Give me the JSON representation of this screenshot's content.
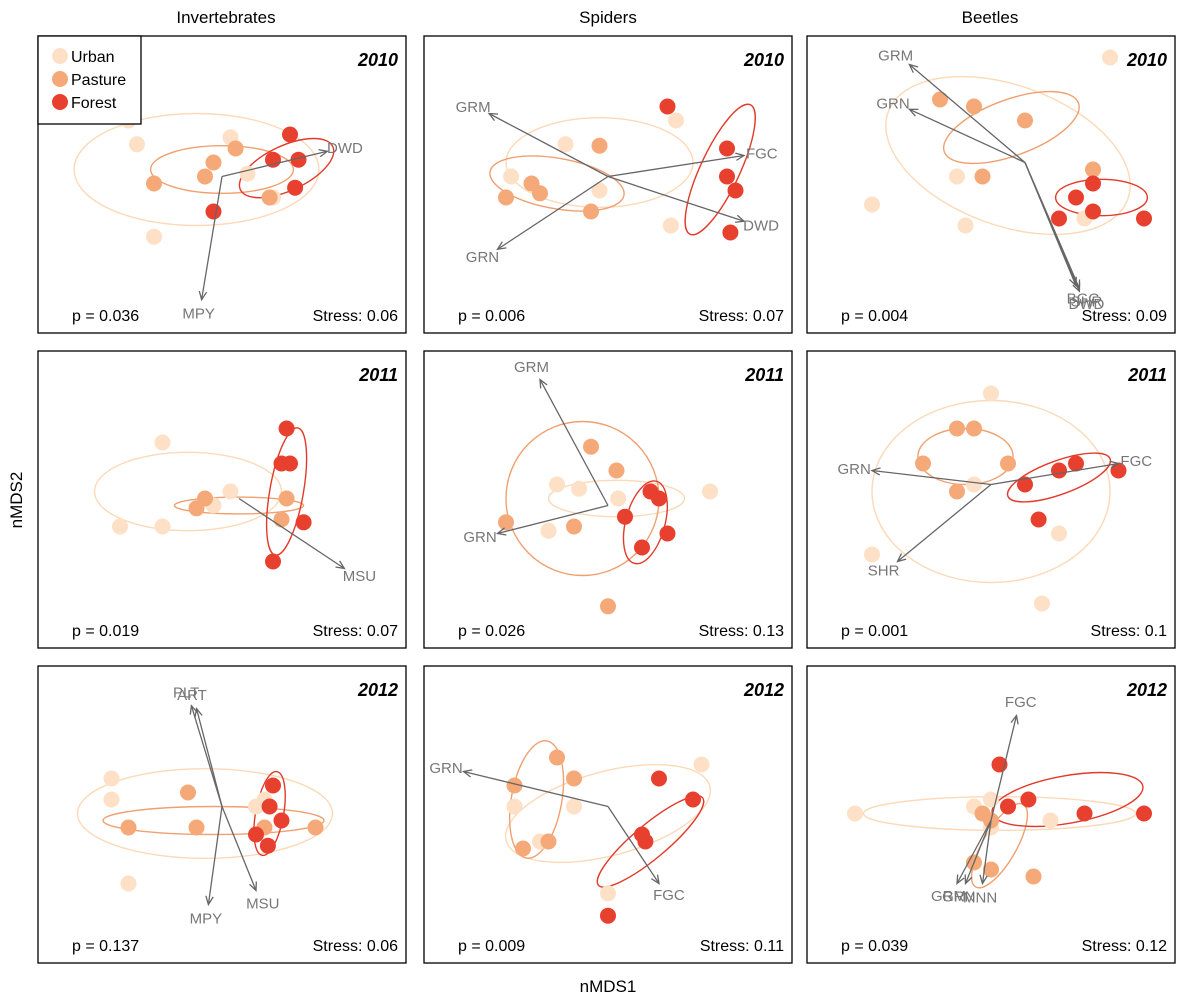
{
  "figure": {
    "xlabel": "nMDS1",
    "ylabel": "nMDS2",
    "columns": [
      "Invertebrates",
      "Spiders",
      "Beetles"
    ],
    "legend": {
      "entries": [
        {
          "label": "Urban",
          "color": "#FDE0C5"
        },
        {
          "label": "Pasture",
          "color": "#F5A978"
        },
        {
          "label": "Forest",
          "color": "#E8402F"
        }
      ],
      "position": "top-left of first panel"
    }
  },
  "colors": {
    "Urban": "#FDE0C5",
    "Pasture": "#F5A978",
    "Forest": "#E8402F",
    "arrow": "#666666",
    "arrow_label": "#777777"
  },
  "chart_data": [
    {
      "type": "scatter",
      "group": "Invertebrates",
      "year": "2010",
      "p": "p = 0.036",
      "stress": "Stress: 0.06",
      "points": {
        "Urban": [
          [
            -0.55,
            0.4
          ],
          [
            -0.5,
            0.23
          ],
          [
            0.05,
            0.28
          ],
          [
            -0.4,
            -0.43
          ],
          [
            0.15,
            0.02
          ],
          [
            0.3,
            -0.15
          ]
        ],
        "Pasture": [
          [
            -0.4,
            -0.05
          ],
          [
            -0.05,
            0.1
          ],
          [
            0.08,
            0.2
          ],
          [
            -0.1,
            0.0
          ],
          [
            0.28,
            -0.15
          ]
        ],
        "Forest": [
          [
            -0.05,
            -0.25
          ],
          [
            0.3,
            0.12
          ],
          [
            0.45,
            0.12
          ],
          [
            0.4,
            0.3
          ],
          [
            0.43,
            -0.08
          ]
        ]
      },
      "ellipses": {
        "Urban": {
          "cx": -0.15,
          "cy": 0.05,
          "rx": 0.72,
          "ry": 0.4,
          "angle": 0
        },
        "Pasture": {
          "cx": 0.0,
          "cy": 0.05,
          "rx": 0.42,
          "ry": 0.17,
          "angle": 0
        },
        "Forest": {
          "cx": 0.38,
          "cy": 0.06,
          "rx": 0.3,
          "ry": 0.16,
          "angle": -25
        }
      },
      "vectors": [
        {
          "label": "DWD",
          "x": 0.62,
          "y": 0.18
        },
        {
          "label": "MPY",
          "x": -0.12,
          "y": -0.88
        }
      ],
      "vector_origin": [
        0.0,
        0.0
      ]
    },
    {
      "type": "scatter",
      "group": "Spiders",
      "year": "2010",
      "p": "p = 0.006",
      "stress": "Stress: 0.07",
      "points": {
        "Urban": [
          [
            -0.57,
            0.0
          ],
          [
            -0.25,
            0.23
          ],
          [
            0.4,
            0.4
          ],
          [
            -0.05,
            -0.1
          ],
          [
            0.37,
            -0.35
          ]
        ],
        "Pasture": [
          [
            -0.6,
            -0.15
          ],
          [
            -0.45,
            -0.05
          ],
          [
            -0.4,
            -0.12
          ],
          [
            -0.1,
            -0.25
          ],
          [
            -0.05,
            0.22
          ]
        ],
        "Forest": [
          [
            0.35,
            0.5
          ],
          [
            0.7,
            0.2
          ],
          [
            0.7,
            0.0
          ],
          [
            0.75,
            -0.1
          ],
          [
            0.72,
            -0.4
          ]
        ]
      },
      "ellipses": {
        "Urban": {
          "cx": -0.05,
          "cy": 0.1,
          "rx": 0.55,
          "ry": 0.32,
          "angle": 0
        },
        "Pasture": {
          "cx": -0.3,
          "cy": -0.05,
          "rx": 0.4,
          "ry": 0.18,
          "angle": 10
        },
        "Forest": {
          "cx": 0.66,
          "cy": 0.05,
          "rx": 0.42,
          "ry": 0.14,
          "angle": -65
        }
      },
      "vectors": [
        {
          "label": "GRM",
          "x": -0.7,
          "y": 0.45
        },
        {
          "label": "FGC",
          "x": 0.8,
          "y": 0.15
        },
        {
          "label": "GRN",
          "x": -0.65,
          "y": -0.52
        },
        {
          "label": "DWD",
          "x": 0.8,
          "y": -0.32
        }
      ],
      "vector_origin": [
        0.0,
        0.0
      ]
    },
    {
      "type": "scatter",
      "group": "Beetles",
      "year": "2010",
      "p": "p = 0.004",
      "stress": "Stress: 0.09",
      "points": {
        "Urban": [
          [
            -0.7,
            -0.2
          ],
          [
            -0.2,
            0.0
          ],
          [
            -0.15,
            -0.35
          ],
          [
            0.55,
            -0.3
          ],
          [
            0.7,
            0.85
          ]
        ],
        "Pasture": [
          [
            -0.3,
            0.55
          ],
          [
            -0.1,
            0.5
          ],
          [
            -0.05,
            0.0
          ],
          [
            0.2,
            0.4
          ],
          [
            0.6,
            0.05
          ]
        ],
        "Forest": [
          [
            0.6,
            -0.05
          ],
          [
            0.5,
            -0.15
          ],
          [
            0.6,
            -0.25
          ],
          [
            0.4,
            -0.3
          ],
          [
            0.9,
            -0.3
          ]
        ]
      },
      "ellipses": {
        "Urban": {
          "cx": 0.1,
          "cy": 0.15,
          "rx": 0.75,
          "ry": 0.5,
          "angle": 20
        },
        "Pasture": {
          "cx": 0.12,
          "cy": 0.35,
          "rx": 0.42,
          "ry": 0.2,
          "angle": -20
        },
        "Forest": {
          "cx": 0.65,
          "cy": -0.15,
          "rx": 0.27,
          "ry": 0.13,
          "angle": 0
        }
      },
      "vectors": [
        {
          "label": "GRM",
          "x": -0.48,
          "y": 0.8
        },
        {
          "label": "GRN",
          "x": -0.48,
          "y": 0.48
        },
        {
          "label": "BGC",
          "x": 0.5,
          "y": -0.78
        },
        {
          "label": "SHR",
          "x": 0.52,
          "y": -0.8
        },
        {
          "label": "DWD",
          "x": 0.52,
          "y": -0.82
        }
      ],
      "vector_origin": [
        0.2,
        0.1
      ]
    },
    {
      "type": "scatter",
      "group": "Invertebrates",
      "year": "2011",
      "p": "p = 0.019",
      "stress": "Stress: 0.07",
      "points": {
        "Urban": [
          [
            -0.6,
            -0.25
          ],
          [
            -0.35,
            -0.25
          ],
          [
            -0.35,
            0.35
          ],
          [
            -0.05,
            -0.1
          ],
          [
            0.05,
            0.0
          ]
        ],
        "Pasture": [
          [
            -0.1,
            -0.05
          ],
          [
            -0.15,
            -0.12
          ],
          [
            0.38,
            -0.05
          ],
          [
            0.35,
            -0.2
          ]
        ],
        "Forest": [
          [
            0.38,
            0.45
          ],
          [
            0.35,
            0.2
          ],
          [
            0.4,
            0.2
          ],
          [
            0.48,
            -0.22
          ],
          [
            0.3,
            -0.5
          ]
        ]
      },
      "ellipses": {
        "Urban": {
          "cx": -0.2,
          "cy": 0.0,
          "rx": 0.55,
          "ry": 0.28,
          "angle": 0
        },
        "Pasture": {
          "cx": 0.1,
          "cy": -0.1,
          "rx": 0.38,
          "ry": 0.06,
          "angle": 0
        },
        "Forest": {
          "cx": 0.38,
          "cy": 0.0,
          "rx": 0.38,
          "ry": 0.12,
          "angle": -80
        }
      },
      "vectors": [
        {
          "label": "MSU",
          "x": 0.72,
          "y": -0.55
        }
      ],
      "vector_origin": [
        0.1,
        -0.05
      ]
    },
    {
      "type": "scatter",
      "group": "Spiders",
      "year": "2011",
      "p": "p = 0.026",
      "stress": "Stress: 0.13",
      "points": {
        "Urban": [
          [
            -0.3,
            0.05
          ],
          [
            -0.35,
            -0.28
          ],
          [
            0.06,
            -0.05
          ],
          [
            0.6,
            0.0
          ],
          [
            -0.17,
            0.02
          ]
        ],
        "Pasture": [
          [
            -0.6,
            -0.22
          ],
          [
            -0.1,
            0.32
          ],
          [
            -0.2,
            -0.25
          ],
          [
            0.05,
            0.15
          ],
          [
            0.0,
            -0.82
          ]
        ],
        "Forest": [
          [
            0.1,
            -0.18
          ],
          [
            0.3,
            -0.05
          ],
          [
            0.2,
            -0.4
          ],
          [
            0.35,
            -0.3
          ],
          [
            0.25,
            0.0
          ]
        ]
      },
      "ellipses": {
        "Urban": {
          "cx": 0.05,
          "cy": -0.05,
          "rx": 0.4,
          "ry": 0.13,
          "angle": 0
        },
        "Pasture": {
          "cx": -0.15,
          "cy": -0.05,
          "rx": 0.45,
          "ry": 0.55,
          "angle": 0
        },
        "Forest": {
          "cx": 0.22,
          "cy": -0.22,
          "rx": 0.25,
          "ry": 0.14,
          "angle": -75
        }
      },
      "vectors": [
        {
          "label": "GRM",
          "x": -0.4,
          "y": 0.8
        },
        {
          "label": "GRN",
          "x": -0.65,
          "y": -0.3
        }
      ],
      "vector_origin": [
        0.0,
        -0.1
      ]
    },
    {
      "type": "scatter",
      "group": "Beetles",
      "year": "2011",
      "p": "p = 0.001",
      "stress": "Stress: 0.1",
      "points": {
        "Urban": [
          [
            -0.1,
            0.05
          ],
          [
            0.0,
            0.7
          ],
          [
            0.4,
            -0.3
          ],
          [
            -0.7,
            -0.45
          ],
          [
            0.3,
            -0.8
          ]
        ],
        "Pasture": [
          [
            -0.2,
            0.45
          ],
          [
            -0.1,
            0.45
          ],
          [
            -0.4,
            0.2
          ],
          [
            0.1,
            0.2
          ],
          [
            -0.2,
            0.0
          ]
        ],
        "Forest": [
          [
            0.2,
            0.05
          ],
          [
            0.4,
            0.15
          ],
          [
            0.5,
            0.2
          ],
          [
            0.75,
            0.15
          ],
          [
            0.28,
            -0.2
          ]
        ]
      },
      "ellipses": {
        "Urban": {
          "cx": 0.0,
          "cy": 0.0,
          "rx": 0.7,
          "ry": 0.65,
          "angle": 0
        },
        "Pasture": {
          "cx": -0.15,
          "cy": 0.25,
          "rx": 0.28,
          "ry": 0.2,
          "angle": 0
        },
        "Forest": {
          "cx": 0.4,
          "cy": 0.1,
          "rx": 0.32,
          "ry": 0.12,
          "angle": -20
        }
      },
      "vectors": [
        {
          "label": "GRN",
          "x": -0.7,
          "y": 0.15
        },
        {
          "label": "FGC",
          "x": 0.75,
          "y": 0.2
        },
        {
          "label": "SHR",
          "x": -0.55,
          "y": -0.5
        }
      ],
      "vector_origin": [
        0.0,
        0.05
      ]
    },
    {
      "type": "scatter",
      "group": "Invertebrates",
      "year": "2012",
      "p": "p = 0.137",
      "stress": "Stress: 0.06",
      "points": {
        "Urban": [
          [
            -0.65,
            0.2
          ],
          [
            -0.65,
            0.05
          ],
          [
            -0.55,
            -0.55
          ],
          [
            0.25,
            0.05
          ],
          [
            0.2,
            0.0
          ]
        ],
        "Pasture": [
          [
            -0.55,
            -0.15
          ],
          [
            -0.2,
            0.1
          ],
          [
            -0.15,
            -0.15
          ],
          [
            0.25,
            -0.15
          ],
          [
            0.55,
            -0.15
          ]
        ],
        "Forest": [
          [
            0.3,
            0.15
          ],
          [
            0.28,
            0.0
          ],
          [
            0.35,
            -0.1
          ],
          [
            0.2,
            -0.2
          ],
          [
            0.27,
            -0.28
          ]
        ]
      },
      "ellipses": {
        "Urban": {
          "cx": -0.1,
          "cy": -0.05,
          "rx": 0.75,
          "ry": 0.32,
          "angle": 0
        },
        "Pasture": {
          "cx": -0.05,
          "cy": -0.1,
          "rx": 0.65,
          "ry": 0.1,
          "angle": 0
        },
        "Forest": {
          "cx": 0.28,
          "cy": -0.05,
          "rx": 0.25,
          "ry": 0.1,
          "angle": -80
        }
      },
      "vectors": [
        {
          "label": "PLT",
          "x": -0.18,
          "y": 0.72
        },
        {
          "label": "ART",
          "x": -0.15,
          "y": 0.7
        },
        {
          "label": "MPY",
          "x": -0.08,
          "y": -0.7
        },
        {
          "label": "MSU",
          "x": 0.2,
          "y": -0.6
        }
      ],
      "vector_origin": [
        0.0,
        0.0
      ]
    },
    {
      "type": "scatter",
      "group": "Spiders",
      "year": "2012",
      "p": "p = 0.009",
      "stress": "Stress: 0.11",
      "points": {
        "Urban": [
          [
            -0.55,
            0.0
          ],
          [
            -0.2,
            0.0
          ],
          [
            -0.4,
            -0.25
          ],
          [
            0.55,
            0.3
          ],
          [
            0.0,
            -0.62
          ]
        ],
        "Pasture": [
          [
            -0.55,
            0.15
          ],
          [
            -0.3,
            0.35
          ],
          [
            -0.2,
            0.2
          ],
          [
            -0.35,
            -0.25
          ],
          [
            -0.5,
            -0.3
          ]
        ],
        "Forest": [
          [
            0.3,
            0.2
          ],
          [
            0.2,
            -0.2
          ],
          [
            0.22,
            -0.25
          ],
          [
            0.5,
            0.05
          ],
          [
            0.0,
            -0.78
          ]
        ]
      },
      "ellipses": {
        "Urban": {
          "cx": 0.0,
          "cy": -0.05,
          "rx": 0.62,
          "ry": 0.3,
          "angle": -15
        },
        "Pasture": {
          "cx": -0.42,
          "cy": 0.05,
          "rx": 0.35,
          "ry": 0.18,
          "angle": -80
        },
        "Forest": {
          "cx": 0.25,
          "cy": -0.25,
          "rx": 0.4,
          "ry": 0.12,
          "angle": -40
        }
      },
      "vectors": [
        {
          "label": "GRN",
          "x": -0.85,
          "y": 0.25
        },
        {
          "label": "FGC",
          "x": 0.3,
          "y": -0.55
        }
      ],
      "vector_origin": [
        0.0,
        0.0
      ]
    },
    {
      "type": "scatter",
      "group": "Beetles",
      "year": "2012",
      "p": "p = 0.039",
      "stress": "Stress: 0.12",
      "points": {
        "Urban": [
          [
            -0.8,
            -0.05
          ],
          [
            0.0,
            0.05
          ],
          [
            0.35,
            -0.1
          ],
          [
            0.0,
            -0.15
          ],
          [
            -0.1,
            0.0
          ]
        ],
        "Pasture": [
          [
            -0.05,
            -0.05
          ],
          [
            -0.1,
            -0.4
          ],
          [
            0.0,
            -0.45
          ],
          [
            0.25,
            -0.5
          ],
          [
            0.0,
            -0.1
          ]
        ],
        "Forest": [
          [
            0.05,
            0.3
          ],
          [
            0.1,
            0.0
          ],
          [
            0.22,
            0.05
          ],
          [
            0.55,
            -0.05
          ],
          [
            0.9,
            -0.05
          ]
        ]
      },
      "ellipses": {
        "Urban": {
          "cx": 0.05,
          "cy": -0.05,
          "rx": 0.8,
          "ry": 0.12,
          "angle": 0
        },
        "Pasture": {
          "cx": 0.05,
          "cy": -0.28,
          "rx": 0.28,
          "ry": 0.12,
          "angle": -60
        },
        "Forest": {
          "cx": 0.45,
          "cy": 0.05,
          "rx": 0.45,
          "ry": 0.17,
          "angle": -10
        }
      },
      "vectors": [
        {
          "label": "FGC",
          "x": 0.15,
          "y": 0.65
        },
        {
          "label": "GRM",
          "x": -0.2,
          "y": -0.55
        },
        {
          "label": "MNN",
          "x": -0.05,
          "y": -0.55
        },
        {
          "label": "GRN",
          "x": -0.15,
          "y": -0.55
        }
      ],
      "vector_origin": [
        0.0,
        -0.1
      ]
    }
  ]
}
